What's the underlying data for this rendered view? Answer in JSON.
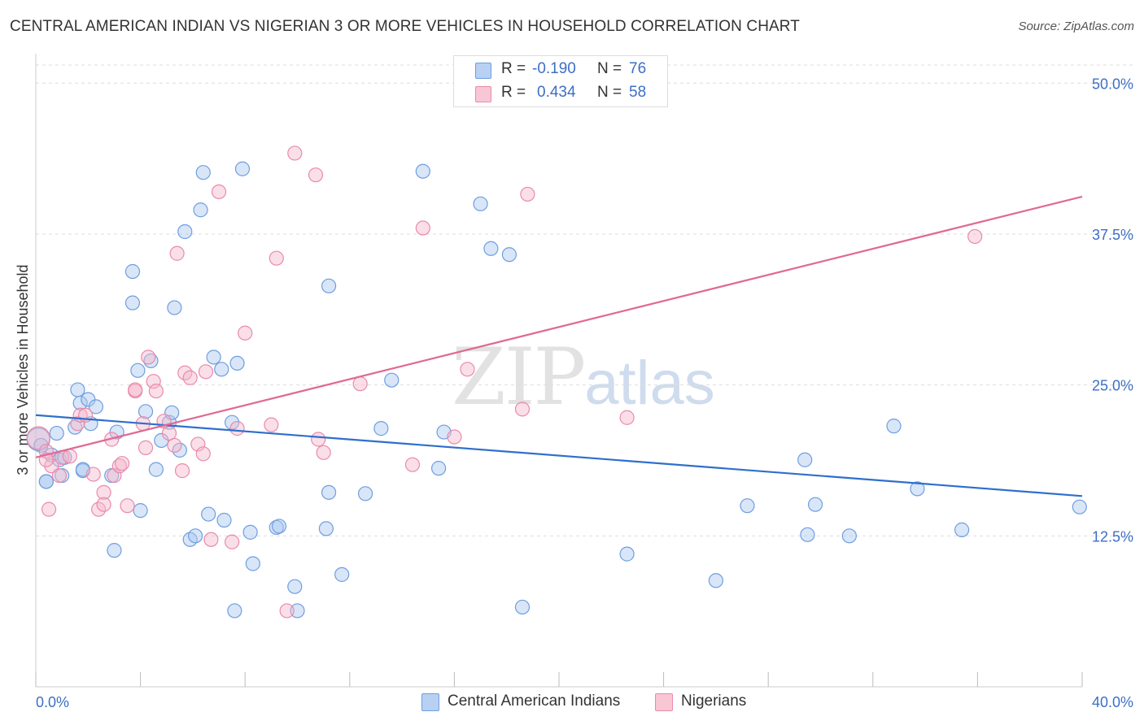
{
  "title": "CENTRAL AMERICAN INDIAN VS NIGERIAN 3 OR MORE VEHICLES IN HOUSEHOLD CORRELATION CHART",
  "source": "Source: ZipAtlas.com",
  "watermark": {
    "zip": "ZIP",
    "atlas": "atlas"
  },
  "colors": {
    "blue_fill": "#a9c7ef",
    "blue_stroke": "#6f9ee0",
    "blue_line": "#2f6fcc",
    "pink_fill": "#f5b8cb",
    "pink_stroke": "#ea8aaa",
    "pink_line": "#e06a93",
    "axis_text": "#3d6fc4",
    "grid": "#dddddd"
  },
  "legend": {
    "r_label": "R =",
    "n_label": "N =",
    "series": [
      {
        "name": "Central American Indians",
        "r": "-0.190",
        "n": "76"
      },
      {
        "name": "Nigerians",
        "r": "0.434",
        "n": "58"
      }
    ]
  },
  "chart_data": {
    "type": "scatter",
    "title": "CENTRAL AMERICAN INDIAN VS NIGERIAN 3 OR MORE VEHICLES IN HOUSEHOLD CORRELATION CHART",
    "xlabel": "",
    "ylabel": "3 or more Vehicles in Household",
    "xlim": [
      0,
      40
    ],
    "ylim": [
      0,
      51.5
    ],
    "x_tick_labels": [
      "0.0%",
      "40.0%"
    ],
    "y_ticks": [
      12.5,
      25.0,
      37.5,
      50.0
    ],
    "y_tick_labels": [
      "12.5%",
      "25.0%",
      "37.5%",
      "50.0%"
    ],
    "series": [
      {
        "name": "Central American Indians",
        "color": "blue",
        "trend": {
          "x": [
            0,
            40
          ],
          "y": [
            22.5,
            15.8
          ]
        },
        "points": [
          [
            0.1,
            20.5
          ],
          [
            0.2,
            20.0
          ],
          [
            0.4,
            17.0
          ],
          [
            0.6,
            19.2
          ],
          [
            0.8,
            21.0
          ],
          [
            0.9,
            18.8
          ],
          [
            1.0,
            17.5
          ],
          [
            1.1,
            19.0
          ],
          [
            1.5,
            21.5
          ],
          [
            1.6,
            24.6
          ],
          [
            1.7,
            23.5
          ],
          [
            1.8,
            17.9
          ],
          [
            1.8,
            18.0
          ],
          [
            2.0,
            23.8
          ],
          [
            2.1,
            21.8
          ],
          [
            2.3,
            23.2
          ],
          [
            2.9,
            17.5
          ],
          [
            3.1,
            21.1
          ],
          [
            3.0,
            11.3
          ],
          [
            3.7,
            34.4
          ],
          [
            3.7,
            31.8
          ],
          [
            3.9,
            26.2
          ],
          [
            4.0,
            14.6
          ],
          [
            4.2,
            22.8
          ],
          [
            4.4,
            27.0
          ],
          [
            4.6,
            18.0
          ],
          [
            4.8,
            20.4
          ],
          [
            5.1,
            21.9
          ],
          [
            5.2,
            22.7
          ],
          [
            5.3,
            31.4
          ],
          [
            5.5,
            19.6
          ],
          [
            5.7,
            37.7
          ],
          [
            5.9,
            12.2
          ],
          [
            6.1,
            12.5
          ],
          [
            6.3,
            39.5
          ],
          [
            6.4,
            42.6
          ],
          [
            6.6,
            14.3
          ],
          [
            6.8,
            27.3
          ],
          [
            7.1,
            26.3
          ],
          [
            7.2,
            13.8
          ],
          [
            7.5,
            21.9
          ],
          [
            7.6,
            6.3
          ],
          [
            7.7,
            26.8
          ],
          [
            7.9,
            42.9
          ],
          [
            8.2,
            12.8
          ],
          [
            8.3,
            10.2
          ],
          [
            9.2,
            13.2
          ],
          [
            9.9,
            8.3
          ],
          [
            10.0,
            6.3
          ],
          [
            11.1,
            13.1
          ],
          [
            11.2,
            16.1
          ],
          [
            11.2,
            33.2
          ],
          [
            11.7,
            9.3
          ],
          [
            12.6,
            16.0
          ],
          [
            13.2,
            21.4
          ],
          [
            13.6,
            25.4
          ],
          [
            14.8,
            42.7
          ],
          [
            15.4,
            18.1
          ],
          [
            15.6,
            21.1
          ],
          [
            17.0,
            40.0
          ],
          [
            17.4,
            36.3
          ],
          [
            18.1,
            35.8
          ],
          [
            18.6,
            6.6
          ],
          [
            22.6,
            11.0
          ],
          [
            26.0,
            8.8
          ],
          [
            27.2,
            15.0
          ],
          [
            29.4,
            18.8
          ],
          [
            29.5,
            12.6
          ],
          [
            29.8,
            15.1
          ],
          [
            31.1,
            12.5
          ],
          [
            32.8,
            21.6
          ],
          [
            33.7,
            16.4
          ],
          [
            35.4,
            13.0
          ],
          [
            39.9,
            14.9
          ],
          [
            0.4,
            17.0
          ],
          [
            9.3,
            13.3
          ]
        ]
      },
      {
        "name": "Nigerians",
        "color": "pink",
        "trend": {
          "x": [
            0,
            40
          ],
          "y": [
            19.0,
            40.6
          ]
        },
        "points": [
          [
            0.1,
            20.6
          ],
          [
            0.4,
            19.5
          ],
          [
            0.5,
            14.7
          ],
          [
            0.6,
            18.3
          ],
          [
            0.9,
            17.5
          ],
          [
            1.0,
            19.0
          ],
          [
            1.3,
            19.1
          ],
          [
            1.6,
            21.8
          ],
          [
            1.7,
            22.5
          ],
          [
            1.9,
            22.5
          ],
          [
            2.2,
            17.6
          ],
          [
            2.4,
            14.7
          ],
          [
            2.6,
            16.1
          ],
          [
            2.6,
            15.1
          ],
          [
            2.9,
            20.5
          ],
          [
            3.0,
            17.5
          ],
          [
            3.2,
            18.3
          ],
          [
            3.3,
            18.5
          ],
          [
            3.5,
            15.0
          ],
          [
            3.8,
            24.5
          ],
          [
            4.1,
            21.8
          ],
          [
            4.2,
            19.8
          ],
          [
            4.3,
            27.3
          ],
          [
            4.5,
            25.3
          ],
          [
            4.6,
            24.5
          ],
          [
            4.9,
            22.0
          ],
          [
            5.1,
            21.0
          ],
          [
            5.3,
            20.0
          ],
          [
            5.4,
            35.9
          ],
          [
            5.6,
            17.9
          ],
          [
            5.7,
            26.0
          ],
          [
            5.9,
            25.6
          ],
          [
            6.2,
            20.1
          ],
          [
            6.4,
            19.3
          ],
          [
            6.5,
            26.1
          ],
          [
            6.7,
            12.2
          ],
          [
            7.0,
            41.0
          ],
          [
            7.5,
            12.0
          ],
          [
            7.7,
            21.4
          ],
          [
            8.0,
            29.3
          ],
          [
            9.0,
            21.7
          ],
          [
            9.2,
            35.5
          ],
          [
            9.6,
            6.3
          ],
          [
            9.9,
            44.2
          ],
          [
            10.7,
            42.4
          ],
          [
            10.8,
            20.5
          ],
          [
            11.0,
            19.4
          ],
          [
            12.4,
            25.1
          ],
          [
            14.4,
            18.4
          ],
          [
            14.8,
            38.0
          ],
          [
            16.0,
            20.7
          ],
          [
            16.5,
            26.3
          ],
          [
            18.6,
            23.0
          ],
          [
            18.8,
            40.8
          ],
          [
            22.6,
            22.3
          ],
          [
            35.9,
            37.3
          ],
          [
            0.4,
            18.8
          ],
          [
            3.8,
            24.6
          ]
        ]
      }
    ]
  }
}
